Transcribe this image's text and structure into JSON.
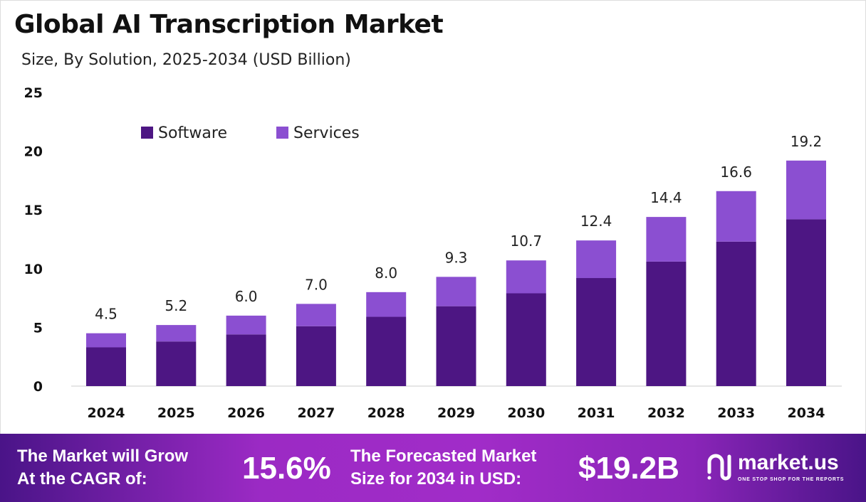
{
  "chart_data": {
    "type": "bar",
    "stacked": true,
    "title": "Global AI Transcription Market",
    "subtitle": "Size, By Solution, 2025-2034 (USD Billion)",
    "categories": [
      "2024",
      "2025",
      "2026",
      "2027",
      "2028",
      "2029",
      "2030",
      "2031",
      "2032",
      "2033",
      "2034"
    ],
    "series": [
      {
        "name": "Software",
        "color": "#4d1683",
        "values": [
          3.3,
          3.8,
          4.4,
          5.1,
          5.9,
          6.8,
          7.9,
          9.2,
          10.6,
          12.3,
          14.2
        ]
      },
      {
        "name": "Services",
        "color": "#8b4fd1",
        "values": [
          1.2,
          1.4,
          1.6,
          1.9,
          2.1,
          2.5,
          2.8,
          3.2,
          3.8,
          4.3,
          5.0
        ]
      }
    ],
    "totals": [
      "4.5",
      "5.2",
      "6.0",
      "7.0",
      "8.0",
      "9.3",
      "10.7",
      "12.4",
      "14.4",
      "16.6",
      "19.2"
    ],
    "yticks": [
      0,
      5,
      10,
      15,
      20,
      25
    ],
    "ylim": [
      0,
      25
    ],
    "grid": false,
    "legend_position": "top-left"
  },
  "footer": {
    "cagr_label_1": "The Market will Grow",
    "cagr_label_2": "At the CAGR of:",
    "cagr_value": "15.6%",
    "forecast_label_1": "The Forecasted Market",
    "forecast_label_2": "Size for 2034 in USD:",
    "forecast_value": "$19.2B",
    "logo_name": "market.us",
    "logo_tagline": "ONE STOP SHOP FOR THE REPORTS"
  }
}
